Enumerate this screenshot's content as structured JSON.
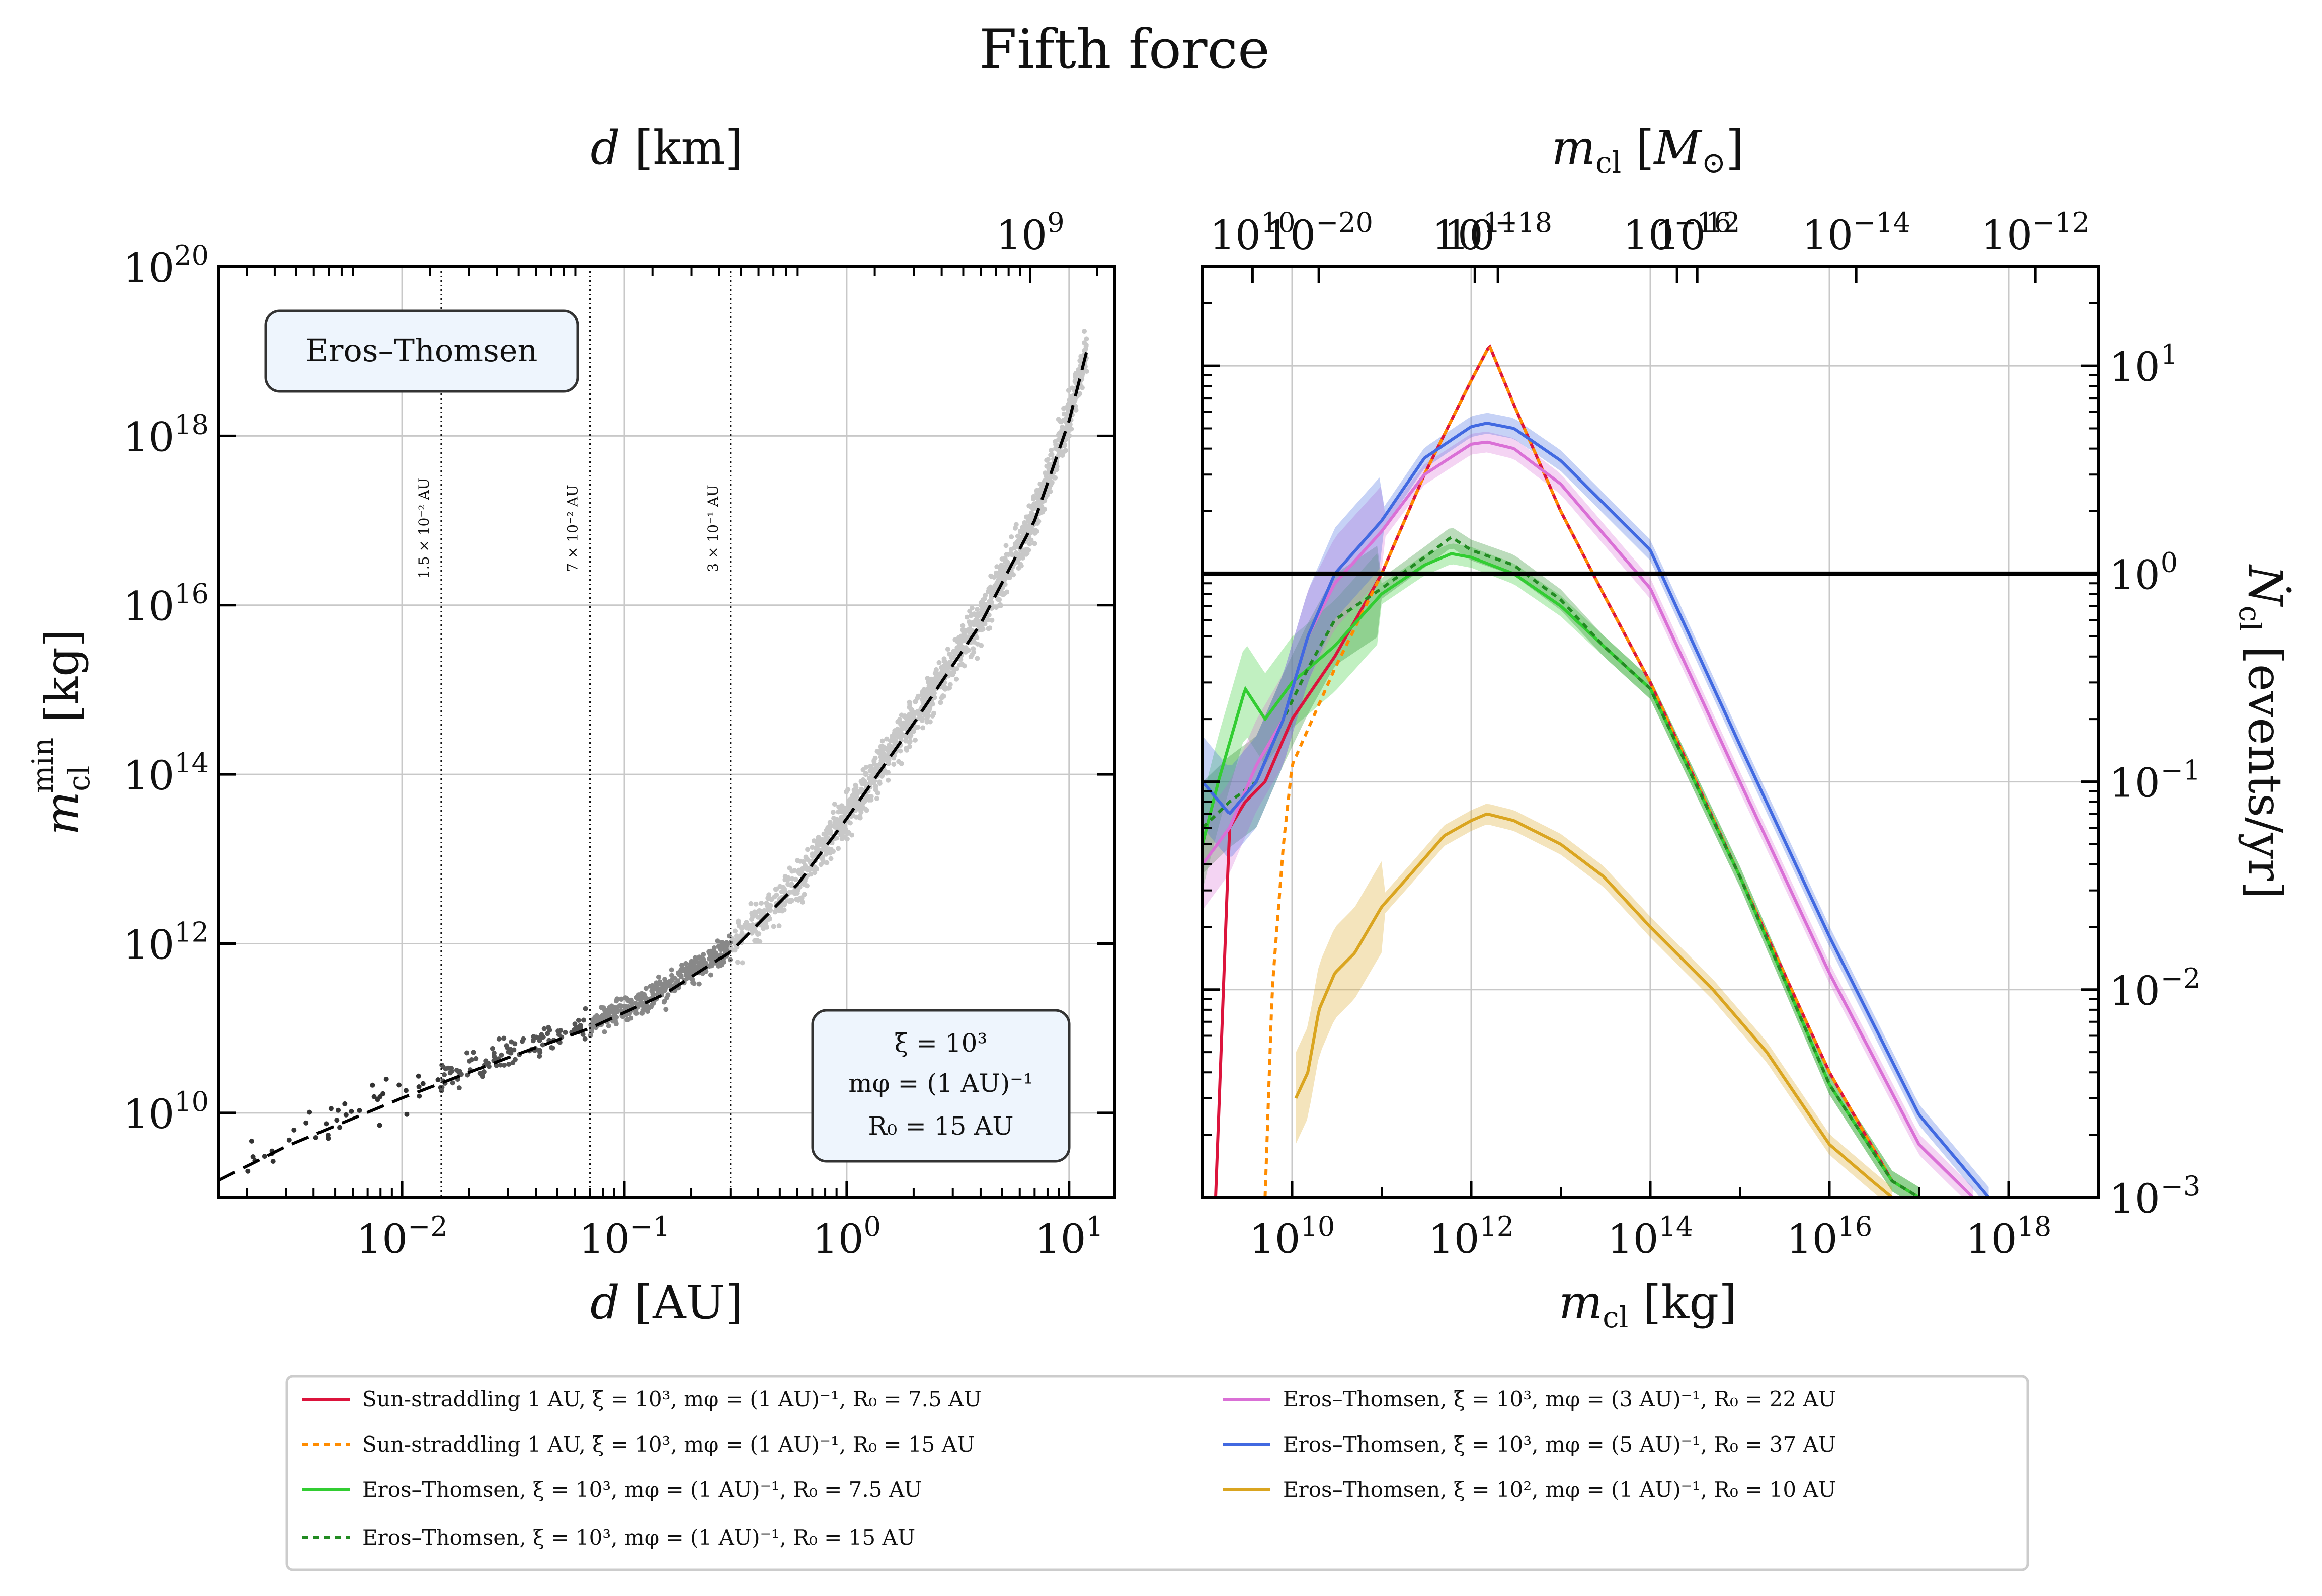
{
  "figure_title": "Fifth force",
  "chart_data": [
    {
      "type": "scatter",
      "panel": "left",
      "xlabel": "d [AU]",
      "ylabel": "m_cl^min [kg]",
      "top_xlabel": "d [km]",
      "xscale": "log",
      "yscale": "log",
      "xlim": [
        0.0015,
        16
      ],
      "ylim": [
        1000000000.0,
        1e+20
      ],
      "grid": true,
      "x_ticks": [
        {
          "value": 0.01,
          "base": "10",
          "exp": "−2"
        },
        {
          "value": 0.1,
          "base": "10",
          "exp": "−1"
        },
        {
          "value": 1,
          "base": "10",
          "exp": "0"
        },
        {
          "value": 10,
          "base": "10",
          "exp": "1"
        }
      ],
      "x_ticks_text": [
        "10^-2",
        "10^-1",
        "10^0",
        "10^1"
      ],
      "top_x_ticks": [
        {
          "value_km": 1000000000.0,
          "base": "10",
          "exp": "9"
        },
        {
          "value_km": 10000000000.0,
          "base": "10",
          "exp": "10"
        },
        {
          "value_km": 100000000000.0,
          "base": "10",
          "exp": "11"
        },
        {
          "value_km": 1000000000000.0,
          "base": "10",
          "exp": "12"
        }
      ],
      "top_x_ticks_text": [
        "10^9",
        "10^10",
        "10^11",
        "10^12"
      ],
      "y_ticks": [
        {
          "value": 10000000000.0,
          "base": "10",
          "exp": "10"
        },
        {
          "value": 1000000000000.0,
          "base": "10",
          "exp": "12"
        },
        {
          "value": 100000000000000.0,
          "base": "10",
          "exp": "14"
        },
        {
          "value": 1e+16,
          "base": "10",
          "exp": "16"
        },
        {
          "value": 1e+18,
          "base": "10",
          "exp": "18"
        },
        {
          "value": 1e+20,
          "base": "10",
          "exp": "20"
        }
      ],
      "y_ticks_text": [
        "10^10",
        "10^12",
        "10^14",
        "10^16",
        "10^18",
        "10^20"
      ],
      "vertical_lines": [
        {
          "x": 0.015,
          "label": "1.5 × 10⁻² AU"
        },
        {
          "x": 0.07,
          "label": "7 × 10⁻² AU"
        },
        {
          "x": 0.3,
          "label": "3 × 10⁻¹ AU"
        }
      ],
      "annotation_top": "Eros–Thomsen",
      "annotation_params": [
        "ξ = 10³",
        "mφ = (1 AU)⁻¹",
        "R₀ = 15 AU"
      ],
      "fit_curve": {
        "x": [
          0.0015,
          0.003,
          0.01,
          0.03,
          0.07,
          0.15,
          0.3,
          0.6,
          1.0,
          2.0,
          4.0,
          7.0,
          10.0,
          12.0
        ],
        "y": [
          1600000000.0,
          4000000000.0,
          15000000000.0,
          45000000000.0,
          100000000000.0,
          250000000000.0,
          800000000000.0,
          5000000000000.0,
          30000000000000.0,
          400000000000000.0,
          6000000000000000.0,
          1e+17,
          1.5e+18,
          1e+19
        ]
      },
      "scatter_groups": [
        {
          "x_range": [
            0.002,
            0.015
          ],
          "density": "sparse",
          "color": "#333333"
        },
        {
          "x_range": [
            0.015,
            0.07
          ],
          "density": "medium",
          "color": "#555555"
        },
        {
          "x_range": [
            0.07,
            0.3
          ],
          "density": "dense",
          "color": "#888888"
        },
        {
          "x_range": [
            0.3,
            12
          ],
          "density": "very dense",
          "color": "#c8c8c8"
        }
      ]
    },
    {
      "type": "line",
      "panel": "right",
      "xlabel": "m_cl [kg]",
      "ylabel": "Ṅ_cl [events/yr]",
      "top_xlabel": "m_cl [M_⊙]",
      "xscale": "log",
      "yscale": "log",
      "xlim": [
        1000000000.0,
        1e+19
      ],
      "ylim": [
        0.001,
        30
      ],
      "grid": true,
      "x_ticks": [
        {
          "value": 10000000000.0,
          "base": "10",
          "exp": "10"
        },
        {
          "value": 1000000000000.0,
          "base": "10",
          "exp": "12"
        },
        {
          "value": 100000000000000.0,
          "base": "10",
          "exp": "14"
        },
        {
          "value": 1e+16,
          "base": "10",
          "exp": "16"
        },
        {
          "value": 1e+18,
          "base": "10",
          "exp": "18"
        }
      ],
      "x_ticks_text": [
        "10^10",
        "10^12",
        "10^14",
        "10^16",
        "10^18"
      ],
      "top_x_ticks": [
        {
          "value_msun": 1e-20,
          "base": "10",
          "exp": "−20"
        },
        {
          "value_msun": 1e-18,
          "base": "10",
          "exp": "−18"
        },
        {
          "value_msun": 1e-16,
          "base": "10",
          "exp": "−16"
        },
        {
          "value_msun": 1e-14,
          "base": "10",
          "exp": "−14"
        },
        {
          "value_msun": 1e-12,
          "base": "10",
          "exp": "−12"
        }
      ],
      "top_x_ticks_text": [
        "10^-20",
        "10^-18",
        "10^-16",
        "10^-14",
        "10^-12"
      ],
      "y_ticks": [
        {
          "value": 0.001,
          "base": "10",
          "exp": "−3"
        },
        {
          "value": 0.01,
          "base": "10",
          "exp": "−2"
        },
        {
          "value": 0.1,
          "base": "10",
          "exp": "−1"
        },
        {
          "value": 1,
          "base": "10",
          "exp": "0"
        },
        {
          "value": 10,
          "base": "10",
          "exp": "1"
        }
      ],
      "y_ticks_text": [
        "10^-3",
        "10^-2",
        "10^-1",
        "10^0",
        "10^1"
      ],
      "reference_line": {
        "y": 1.0,
        "color": "#000000"
      },
      "series": [
        {
          "name": "Sun-straddling 1 AU, ξ = 10³, mφ = (1 AU)⁻¹, R₀ = 7.5 AU",
          "color": "#dc143c",
          "dash": "solid",
          "band": false,
          "x": [
            1400000000.0,
            2000000000.0,
            3000000000.0,
            5000000000.0,
            10000000000.0,
            30000000000.0,
            100000000000.0,
            300000000000.0,
            1000000000000.0,
            1600000000000.0,
            3000000000000.0,
            10000000000000.0,
            30000000000000.0,
            100000000000000.0,
            1000000000000000.0,
            1e+16,
            5e+16,
            1e+17
          ],
          "y": [
            0.001,
            0.06,
            0.08,
            0.1,
            0.2,
            0.4,
            1.0,
            3.0,
            8.5,
            12.5,
            6.5,
            2.0,
            0.8,
            0.3,
            0.035,
            0.004,
            0.0012,
            0.001
          ]
        },
        {
          "name": "Sun-straddling 1 AU, ξ = 10³, mφ = (1 AU)⁻¹, R₀ = 15 AU",
          "color": "#ff8c00",
          "dash": "dotted",
          "band": false,
          "x": [
            5000000000.0,
            6000000000.0,
            8000000000.0,
            10000000000.0,
            30000000000.0,
            100000000000.0,
            300000000000.0,
            1000000000000.0,
            1600000000000.0,
            3000000000000.0,
            10000000000000.0,
            30000000000000.0,
            100000000000000.0,
            1000000000000000.0,
            1e+16,
            5e+16,
            1e+17
          ],
          "y": [
            0.001,
            0.01,
            0.05,
            0.12,
            0.35,
            1.0,
            3.0,
            8.5,
            12.5,
            6.5,
            2.0,
            0.8,
            0.3,
            0.035,
            0.004,
            0.0012,
            0.001
          ]
        },
        {
          "name": "Eros–Thomsen, ξ = 10³, mφ = (1 AU)⁻¹, R₀ = 7.5 AU",
          "color": "#32cd32",
          "dash": "solid",
          "band": true,
          "x": [
            1000000000.0,
            1500000000.0,
            3000000000.0,
            5000000000.0,
            10000000000.0,
            30000000000.0,
            100000000000.0,
            300000000000.0,
            600000000000.0,
            1000000000000.0,
            3000000000000.0,
            10000000000000.0,
            30000000000000.0,
            100000000000000.0,
            1000000000000000.0,
            1e+16,
            5e+16,
            1e+17
          ],
          "y": [
            0.05,
            0.1,
            0.28,
            0.2,
            0.3,
            0.45,
            0.8,
            1.1,
            1.25,
            1.2,
            1.0,
            0.7,
            0.45,
            0.28,
            0.035,
            0.0035,
            0.0012,
            0.001
          ]
        },
        {
          "name": "Eros–Thomsen, ξ = 10³, mφ = (1 AU)⁻¹, R₀ = 15 AU",
          "color": "#228b22",
          "dash": "dotted",
          "band": true,
          "x": [
            1000000000.0,
            2000000000.0,
            4000000000.0,
            8000000000.0,
            15000000000.0,
            30000000000.0,
            100000000000.0,
            300000000000.0,
            600000000000.0,
            1000000000000.0,
            3000000000000.0,
            10000000000000.0,
            30000000000000.0,
            100000000000000.0,
            1000000000000000.0,
            1e+16,
            5e+16,
            1e+17
          ],
          "y": [
            0.06,
            0.08,
            0.1,
            0.2,
            0.35,
            0.6,
            0.85,
            1.2,
            1.5,
            1.3,
            1.1,
            0.75,
            0.45,
            0.28,
            0.035,
            0.0035,
            0.0012,
            0.001
          ]
        },
        {
          "name": "Eros–Thomsen, ξ = 10³, mφ = (3 AU)⁻¹, R₀ = 22 AU",
          "color": "#da70d6",
          "dash": "solid",
          "band": true,
          "x": [
            1000000000.0,
            2000000000.0,
            4000000000.0,
            8000000000.0,
            15000000000.0,
            30000000000.0,
            100000000000.0,
            300000000000.0,
            1000000000000.0,
            1500000000000.0,
            3000000000000.0,
            10000000000000.0,
            100000000000000.0,
            1000000000000000.0,
            1e+16,
            1e+17,
            4e+17
          ],
          "y": [
            0.04,
            0.06,
            0.12,
            0.2,
            0.5,
            0.9,
            1.6,
            3.0,
            4.2,
            4.3,
            4.0,
            2.7,
            0.85,
            0.1,
            0.012,
            0.0018,
            0.001
          ]
        },
        {
          "name": "Eros–Thomsen, ξ = 10³, mφ = (5 AU)⁻¹, R₀ = 37 AU",
          "color": "#4169e1",
          "dash": "solid",
          "band": true,
          "x": [
            1000000000.0,
            2000000000.0,
            4000000000.0,
            8000000000.0,
            15000000000.0,
            30000000000.0,
            100000000000.0,
            300000000000.0,
            1000000000000.0,
            1500000000000.0,
            3000000000000.0,
            10000000000000.0,
            100000000000000.0,
            1000000000000000.0,
            1e+16,
            1e+17,
            6e+17
          ],
          "y": [
            0.1,
            0.07,
            0.1,
            0.2,
            0.5,
            1.0,
            1.8,
            3.6,
            5.1,
            5.3,
            5.0,
            3.5,
            1.3,
            0.15,
            0.018,
            0.0025,
            0.001
          ]
        },
        {
          "name": "Eros–Thomsen, ξ = 10², mφ = (1 AU)⁻¹, R₀ = 10 AU",
          "color": "#daa520",
          "dash": "solid",
          "band": true,
          "x": [
            11000000000.0,
            15000000000.0,
            20000000000.0,
            30000000000.0,
            50000000000.0,
            100000000000.0,
            200000000000.0,
            500000000000.0,
            1000000000000.0,
            1500000000000.0,
            3000000000000.0,
            10000000000000.0,
            30000000000000.0,
            100000000000000.0,
            500000000000000.0,
            2000000000000000.0,
            1e+16,
            3e+16,
            5e+16
          ],
          "y": [
            0.003,
            0.004,
            0.008,
            0.012,
            0.015,
            0.025,
            0.035,
            0.055,
            0.065,
            0.07,
            0.065,
            0.05,
            0.035,
            0.02,
            0.01,
            0.005,
            0.0018,
            0.0012,
            0.001
          ]
        }
      ]
    }
  ]
}
